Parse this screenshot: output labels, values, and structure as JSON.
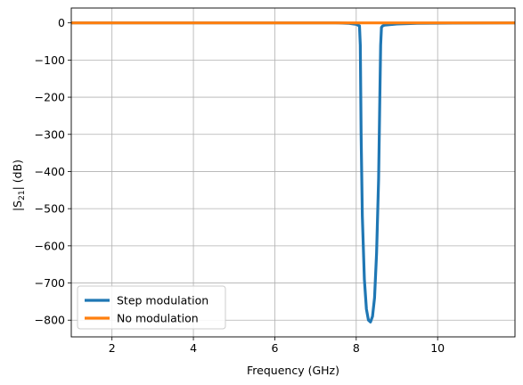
{
  "chart_data": {
    "type": "line",
    "xlabel": "Frequency (GHz)",
    "ylabel_prefix": "|S",
    "ylabel_sub": "21",
    "ylabel_suffix": "| (dB)",
    "xlim": [
      1.0,
      11.9
    ],
    "ylim": [
      -845,
      40
    ],
    "xticks": [
      2,
      4,
      6,
      8,
      10
    ],
    "yticks": [
      0,
      -100,
      -200,
      -300,
      -400,
      -500,
      -600,
      -700,
      -800
    ],
    "ytick_labels": [
      "0",
      "−100",
      "−200",
      "−300",
      "−400",
      "−500",
      "−600",
      "−700",
      "−800"
    ],
    "grid": true,
    "legend_position": "lower-left",
    "series": [
      {
        "name": "Step modulation",
        "color": "#1f77b4",
        "x": [
          1.0,
          7.5,
          7.8,
          8.0,
          8.08,
          8.1,
          8.12,
          8.15,
          8.2,
          8.25,
          8.3,
          8.35,
          8.4,
          8.45,
          8.5,
          8.55,
          8.58,
          8.6,
          8.62,
          8.65,
          8.7,
          9.0,
          9.5,
          11.9
        ],
        "y": [
          0,
          0,
          -1,
          -4,
          -8,
          -60,
          -300,
          -520,
          -690,
          -770,
          -800,
          -805,
          -790,
          -740,
          -620,
          -420,
          -200,
          -60,
          -12,
          -8,
          -6,
          -3,
          -1,
          0
        ]
      },
      {
        "name": "No modulation",
        "color": "#ff7f0e",
        "x": [
          1.0,
          11.9
        ],
        "y": [
          0,
          0
        ]
      }
    ]
  }
}
